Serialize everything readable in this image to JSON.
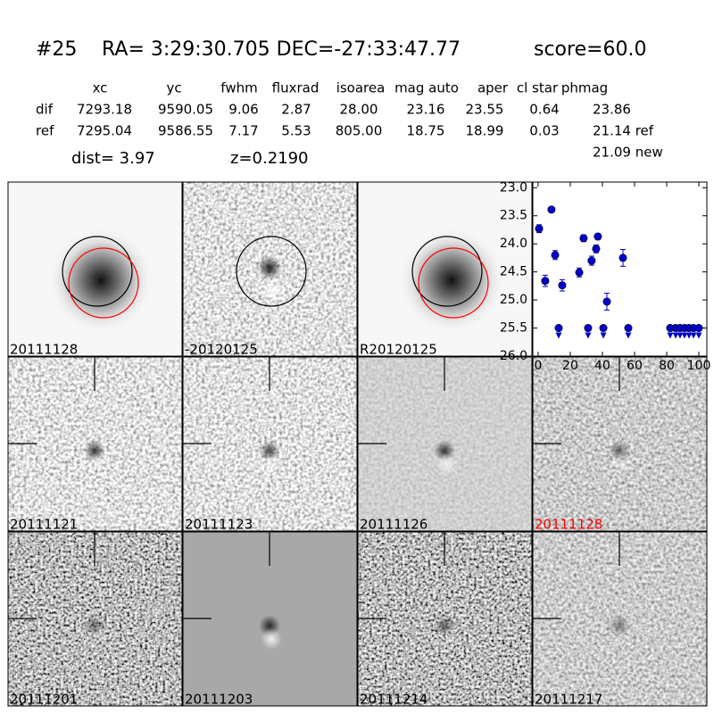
{
  "header": {
    "id": "#25",
    "coords": "RA= 3:29:30.705 DEC=-27:33:47.77",
    "score": "score=60.0"
  },
  "table": {
    "columns": [
      "xc",
      "yc",
      "fwhm",
      "fluxrad",
      "isoarea",
      "mag auto",
      "aper",
      "cl star",
      "phmag"
    ],
    "rows": [
      [
        "dif",
        "7293.18",
        "9590.05",
        "9.06",
        "2.87",
        "28.00",
        "23.16",
        "23.55",
        "0.64",
        "23.86"
      ],
      [
        "ref",
        "7295.04",
        "9586.55",
        "7.17",
        "5.53",
        "805.00",
        "18.75",
        "18.99",
        "0.03",
        "21.14 ref"
      ]
    ],
    "extra": "21.09 new"
  },
  "dist": "dist=  3.97",
  "z": "z=0.2190",
  "panels": [
    "20111128",
    "-20120125",
    "R20120125",
    "20111121",
    "20111123",
    "20111126",
    "20111128",
    "20111201",
    "20111203",
    "20111214",
    "20111217"
  ],
  "chart_data": {
    "type": "scatter",
    "xlim": [
      -3.3,
      105
    ],
    "ylim": [
      22.9,
      26.0
    ],
    "y_inverted": true,
    "xticks": [
      0,
      20,
      40,
      60,
      80,
      100
    ],
    "yticks": [
      {
        "value": 23.0,
        "label": "23.0"
      },
      23.5,
      {
        "value": 24.0,
        "label": "24.0"
      },
      24.5,
      {
        "value": 25.0,
        "label": "25.0"
      },
      25.5,
      {
        "value": 26.0,
        "label": "26.0"
      }
    ],
    "series": [
      {
        "color": "#0000cc",
        "marker": "point",
        "x": [
          0.6,
          4.4,
          8.3,
          10.6,
          15,
          25.6,
          28.3,
          33.3,
          36.1,
          37.2,
          42.8,
          52.8
        ],
        "values": [
          23.73,
          24.66,
          23.39,
          24.2,
          24.74,
          24.51,
          23.9,
          24.3,
          24.09,
          23.87,
          25.03,
          24.25
        ],
        "errors": [
          0.07,
          0.1,
          0.03,
          0.08,
          0.1,
          0.08,
          0.06,
          0.08,
          0.07,
          0.05,
          0.15,
          0.15
        ]
      },
      {
        "color": "#0000cc",
        "marker": "limit",
        "x": [
          12.8,
          31.1,
          40.6,
          56.1,
          82.2,
          85.6,
          88.3,
          91.1,
          93.9,
          96.7,
          100
        ],
        "values": [
          25.5,
          25.5,
          25.5,
          25.5,
          25.5,
          25.5,
          25.5,
          25.5,
          25.5,
          25.5,
          25.5
        ]
      }
    ]
  }
}
